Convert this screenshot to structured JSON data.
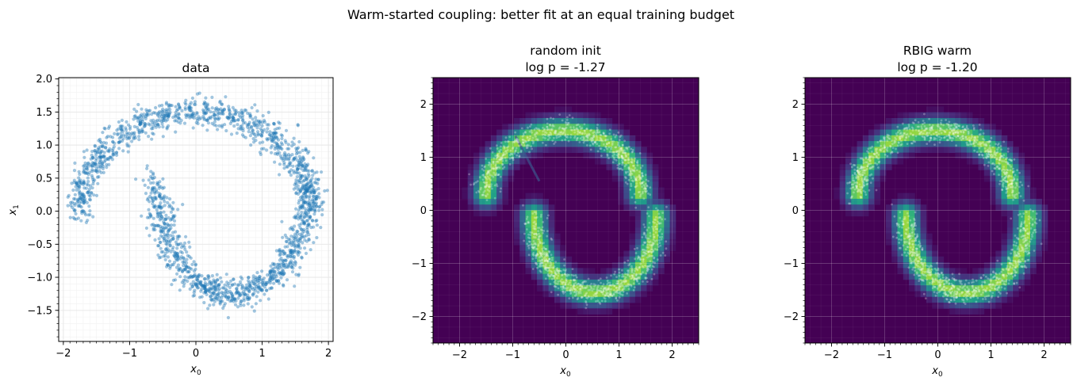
{
  "figure": {
    "suptitle": "Warm-started coupling: better fit at an equal training budget"
  },
  "chart_data": [
    {
      "type": "scatter",
      "title": "data",
      "title_line2": "",
      "xlabel_base": "x",
      "xlabel_sub": "0",
      "ylabel_base": "x",
      "ylabel_sub": "1",
      "xlim": [
        -2.07,
        2.07
      ],
      "ylim": [
        -1.97,
        2.02
      ],
      "xticks": [
        -2,
        -1,
        0,
        1,
        2
      ],
      "xtick_labels": [
        "−2",
        "−1",
        "0",
        "1",
        "2"
      ],
      "yticks": [
        -1.5,
        -1.0,
        -0.5,
        0.0,
        0.5,
        1.0,
        1.5,
        2.0
      ],
      "ytick_labels": [
        "−1.5",
        "−1.0",
        "−0.5",
        "0.0",
        "0.5",
        "1.0",
        "1.5",
        "2.0"
      ],
      "grid": true,
      "background": "white",
      "point_color": "#1f77b4",
      "density": {
        "shape": "two interleaved half-moons",
        "upper_moon": {
          "center_x": 0.0,
          "center_y": -0.05,
          "radius_x": 1.75,
          "radius_y": 1.55
        },
        "lower_moon": {
          "center_x": 0.55,
          "center_y": 0.5,
          "radius_x": 1.15,
          "radius_y": 1.75
        },
        "noise_sd": 0.11
      }
    },
    {
      "type": "heatmap",
      "title": "random init",
      "title_line2": "log p = -1.27",
      "log_p": -1.27,
      "xlabel_base": "x",
      "xlabel_sub": "0",
      "xlim": [
        -2.5,
        2.5
      ],
      "ylim": [
        -2.5,
        2.5
      ],
      "xticks": [
        -2,
        -1,
        0,
        1,
        2
      ],
      "xtick_labels": [
        "−2",
        "−1",
        "0",
        "1",
        "2"
      ],
      "yticks": [
        -2,
        -1,
        0,
        1,
        2
      ],
      "ytick_labels": [
        "−2",
        "−1",
        "0",
        "1",
        "2"
      ],
      "grid": true,
      "colormap": "viridis",
      "overlay_points": true,
      "has_bridge_artifact": true,
      "density": {
        "shape": "two interleaved half-moons",
        "upper_moon": {
          "center_x": -0.05,
          "center_y": 0.3,
          "radius_x": 1.45,
          "radius_y": 1.2
        },
        "lower_moon": {
          "center_x": 0.55,
          "center_y": -0.1,
          "radius_x": 1.15,
          "radius_y": 1.45
        },
        "noise_sd": 0.11
      }
    },
    {
      "type": "heatmap",
      "title": "RBIG warm",
      "title_line2": "log p = -1.20",
      "log_p": -1.2,
      "xlabel_base": "x",
      "xlabel_sub": "0",
      "xlim": [
        -2.5,
        2.5
      ],
      "ylim": [
        -2.5,
        2.5
      ],
      "xticks": [
        -2,
        -1,
        0,
        1,
        2
      ],
      "xtick_labels": [
        "−2",
        "−1",
        "0",
        "1",
        "2"
      ],
      "yticks": [
        -2,
        -1,
        0,
        1,
        2
      ],
      "ytick_labels": [
        "−2",
        "−1",
        "0",
        "1",
        "2"
      ],
      "grid": true,
      "colormap": "viridis",
      "overlay_points": true,
      "has_bridge_artifact": false,
      "density": {
        "shape": "two interleaved half-moons",
        "upper_moon": {
          "center_x": -0.05,
          "center_y": 0.3,
          "radius_x": 1.45,
          "radius_y": 1.2
        },
        "lower_moon": {
          "center_x": 0.55,
          "center_y": -0.1,
          "radius_x": 1.15,
          "radius_y": 1.45
        },
        "noise_sd": 0.11
      }
    }
  ]
}
